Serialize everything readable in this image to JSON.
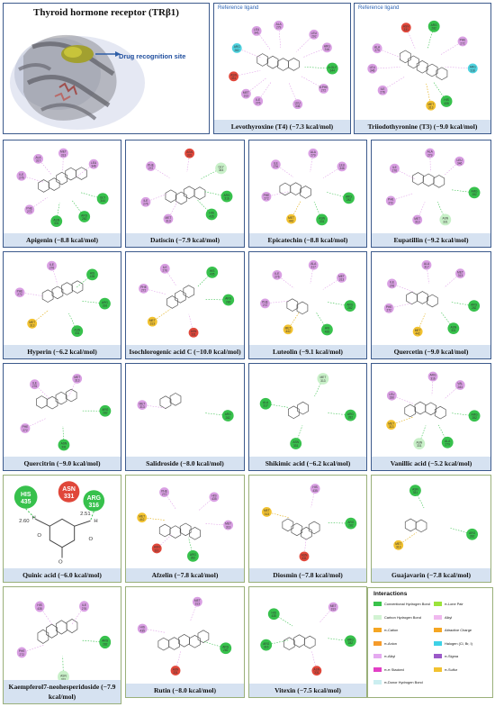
{
  "receptor_panel": {
    "title": "Thyroid hormone receptor (TRβ1)",
    "site_label": "Drug recognition site"
  },
  "reference_tag": "Reference ligand",
  "panels": [
    {
      "id": "levothyroxine",
      "name": "Levothyroxine (T4) (−7.3 kcal/mol)",
      "reference": true
    },
    {
      "id": "triiodothyronine",
      "name": "Triiodothyronine (T3) (−9.0 kcal/mol)",
      "reference": true
    },
    {
      "id": "apigenin",
      "name": "Apigenin (−8.8 kcal/mol)"
    },
    {
      "id": "datiscin",
      "name": "Datiscin (−7.9 kcal/mol)"
    },
    {
      "id": "epicatechin",
      "name": "Epicatechin (−8.8 kcal/mol)"
    },
    {
      "id": "eupatillin",
      "name": "Eupatillin (−9.2 kcal/mol)"
    },
    {
      "id": "hyperin",
      "name": "Hyperin (−6.2 kcal/mol)"
    },
    {
      "id": "isochlorogenic",
      "name": "Isochlorogenic acid C (−10.0 kcal/mol)"
    },
    {
      "id": "luteolin",
      "name": "Luteolin (−9.1 kcal/mol)"
    },
    {
      "id": "quercetin",
      "name": "Quercetin (−9.0 kcal/mol)"
    },
    {
      "id": "quercitrin",
      "name": "Quercitrin (−9.0 kcal/mol)"
    },
    {
      "id": "salidroside",
      "name": "Salidroside (−8.0 kcal/mol)"
    },
    {
      "id": "shikimic",
      "name": "Shikimic acid (−6.2 kcal/mol)"
    },
    {
      "id": "vanillic",
      "name": "Vanillic acid (−5.2 kcal/mol)"
    },
    {
      "id": "quinic",
      "name": "Quinic acid (−6.0 kcal/mol)"
    },
    {
      "id": "afzelin",
      "name": "Afzelin (−7.8 kcal/mol)"
    },
    {
      "id": "diosmin",
      "name": "Diosmin (−7.8 kcal/mol)"
    },
    {
      "id": "guajavarin",
      "name": "Guajavarin (−7.8 kcal/mol)"
    },
    {
      "id": "kaempferol",
      "name": "Kaempferol7-neohesperidoside (−7.9 kcal/mol)"
    },
    {
      "id": "rutin",
      "name": "Rutin (−8.0 kcal/mol)"
    },
    {
      "id": "vitexin",
      "name": "Vitexin (−7.5 kcal/mol)"
    }
  ],
  "residues": {
    "levothyroxine": [
      {
        "t": "A:GLY\n344",
        "c": "#37c14c"
      },
      {
        "t": "B:PHE\n272",
        "c": "#d99fe3"
      },
      {
        "t": "LEU\n346",
        "c": "#d99fe3"
      },
      {
        "t": "ILE\n276",
        "c": "#d99fe3"
      },
      {
        "t": "MET\n313",
        "c": "#d99fe3"
      },
      {
        "t": "ASN\n331",
        "c": "#e0473a"
      },
      {
        "t": "ARG\n282",
        "c": "#4fd3e0"
      },
      {
        "t": "LEU\n341",
        "c": "#d99fe3"
      },
      {
        "t": "ALA\n279",
        "c": "#d99fe3"
      },
      {
        "t": "LEU\n292",
        "c": "#d99fe3"
      },
      {
        "t": "ARG\n316",
        "c": "#d99fe3"
      }
    ],
    "triiodothyronine": [
      {
        "t": "ARG\n316",
        "c": "#4fd3e0"
      },
      {
        "t": "HIS\n435",
        "c": "#37c14c"
      },
      {
        "t": "MET\n313",
        "c": "#f2c230"
      },
      {
        "t": "ILE\n276",
        "c": "#d99fe3"
      },
      {
        "t": "LEU\n346",
        "c": "#d99fe3"
      },
      {
        "t": "ALA\n279",
        "c": "#d99fe3"
      },
      {
        "t": "ASN\n331",
        "c": "#e0473a"
      },
      {
        "t": "ARG\n282",
        "c": "#37c14c"
      },
      {
        "t": "PHE\n272",
        "c": "#d99fe3"
      }
    ],
    "apigenin": [
      {
        "t": "GLY\n344",
        "c": "#37c14c"
      },
      {
        "t": "ARG\n282",
        "c": "#37c14c"
      },
      {
        "t": "ASN\n331",
        "c": "#37c14c"
      },
      {
        "t": "PHE\n272",
        "c": "#d99fe3"
      },
      {
        "t": "ILE\n276",
        "c": "#d99fe3"
      },
      {
        "t": "ALA\n317",
        "c": "#d99fe3"
      },
      {
        "t": "MET\n313",
        "c": "#d99fe3"
      },
      {
        "t": "LEU\n346",
        "c": "#d99fe3"
      }
    ],
    "datiscin": [
      {
        "t": "ARG\n316",
        "c": "#37c14c"
      },
      {
        "t": "HIS\n435",
        "c": "#37c14c"
      },
      {
        "t": "MET\n313",
        "c": "#d99fe3"
      },
      {
        "t": "ILE\n276",
        "c": "#d99fe3"
      },
      {
        "t": "PHE\n272",
        "c": "#d99fe3"
      },
      {
        "t": "ASN\n331",
        "c": "#e0473a"
      },
      {
        "t": "GLY\n344",
        "c": "#c8f0c8"
      }
    ],
    "epicatechin": [
      {
        "t": "ARG\n282",
        "c": "#37c14c"
      },
      {
        "t": "ASN\n331",
        "c": "#37c14c"
      },
      {
        "t": "MET\n442",
        "c": "#f2c230"
      },
      {
        "t": "PHE\n272",
        "c": "#d99fe3"
      },
      {
        "t": "ILE\n276",
        "c": "#d99fe3"
      },
      {
        "t": "ALA\n279",
        "c": "#d99fe3"
      },
      {
        "t": "LEU\n346",
        "c": "#d99fe3"
      }
    ],
    "eupatillin": [
      {
        "t": "ARG\n282",
        "c": "#37c14c"
      },
      {
        "t": "ASN\n331",
        "c": "#c8f0c8"
      },
      {
        "t": "MET\n313",
        "c": "#d99fe3"
      },
      {
        "t": "PHE\n272",
        "c": "#d99fe3"
      },
      {
        "t": "ILE\n276",
        "c": "#d99fe3"
      },
      {
        "t": "ALA\n279",
        "c": "#d99fe3"
      },
      {
        "t": "LEU\n346",
        "c": "#d99fe3"
      }
    ],
    "hyperin": [
      {
        "t": "ARG\n316",
        "c": "#37c14c"
      },
      {
        "t": "ASN\n331",
        "c": "#37c14c"
      },
      {
        "t": "MET\n313",
        "c": "#f2c230"
      },
      {
        "t": "PHE\n272",
        "c": "#d99fe3"
      },
      {
        "t": "ILE\n276",
        "c": "#d99fe3"
      },
      {
        "t": "HIS\n435",
        "c": "#37c14c"
      }
    ],
    "isochlorogenic": [
      {
        "t": "ARG\n282",
        "c": "#37c14c"
      },
      {
        "t": "ASN\n331",
        "c": "#e0473a"
      },
      {
        "t": "MET\n313",
        "c": "#f2c230"
      },
      {
        "t": "PHE\n272",
        "c": "#d99fe3"
      },
      {
        "t": "ILE\n276",
        "c": "#d99fe3"
      },
      {
        "t": "HIS\n435",
        "c": "#37c14c"
      }
    ],
    "luteolin": [
      {
        "t": "ARG\n282",
        "c": "#37c14c"
      },
      {
        "t": "HIS\n435",
        "c": "#37c14c"
      },
      {
        "t": "MET\n442",
        "c": "#f2c230"
      },
      {
        "t": "PHE\n272",
        "c": "#d99fe3"
      },
      {
        "t": "ILE\n276",
        "c": "#d99fe3"
      },
      {
        "t": "ALA\n317",
        "c": "#d99fe3"
      },
      {
        "t": "MET\n313",
        "c": "#d99fe3"
      }
    ],
    "quercetin": [
      {
        "t": "ARG\n282",
        "c": "#37c14c"
      },
      {
        "t": "ASN\n331",
        "c": "#37c14c"
      },
      {
        "t": "MET\n442",
        "c": "#f2c230"
      },
      {
        "t": "PHE\n272",
        "c": "#d99fe3"
      },
      {
        "t": "ILE\n276",
        "c": "#d99fe3"
      },
      {
        "t": "ALA\n317",
        "c": "#d99fe3"
      },
      {
        "t": "MET\n313",
        "c": "#d99fe3"
      }
    ],
    "quercitrin": [
      {
        "t": "ARG\n282",
        "c": "#37c14c"
      },
      {
        "t": "ASN\n331",
        "c": "#37c14c"
      },
      {
        "t": "PHE\n272",
        "c": "#d99fe3"
      },
      {
        "t": "ILE\n276",
        "c": "#d99fe3"
      },
      {
        "t": "MET\n313",
        "c": "#d99fe3"
      }
    ],
    "salidroside": [
      {
        "t": "ARG\n282",
        "c": "#37c14c"
      },
      {
        "t": "MET\n313",
        "c": "#d99fe3"
      }
    ],
    "shikimic": [
      {
        "t": "ARG\n282",
        "c": "#37c14c"
      },
      {
        "t": "ASN\n331",
        "c": "#37c14c"
      },
      {
        "t": "ALA\n317",
        "c": "#37c14c"
      },
      {
        "t": "MET\n313",
        "c": "#c8f0c8"
      }
    ],
    "vanillic": [
      {
        "t": "ARG\n282",
        "c": "#37c14c"
      },
      {
        "t": "ALA\n279",
        "c": "#37c14c"
      },
      {
        "t": "ASN\n331",
        "c": "#c8f0c8"
      },
      {
        "t": "MET\n313",
        "c": "#f2c230"
      },
      {
        "t": "LEU\n330",
        "c": "#d99fe3"
      },
      {
        "t": "ARG\n316",
        "c": "#d99fe3"
      },
      {
        "t": "VAL\n283",
        "c": "#d99fe3"
      }
    ],
    "quinic": [
      {
        "t": "HIS\n435",
        "c": "#37c14c"
      },
      {
        "t": "ASN\n331",
        "c": "#e0473a"
      },
      {
        "t": "ARG\n316",
        "c": "#37c14c"
      }
    ],
    "afzelin": [
      {
        "t": "MET\n313",
        "c": "#d99fe3"
      },
      {
        "t": "ARG\n282",
        "c": "#37c14c"
      },
      {
        "t": "ASN\n331",
        "c": "#e0473a"
      },
      {
        "t": "MET\n442",
        "c": "#f2c230"
      },
      {
        "t": "PHE\n272",
        "c": "#d99fe3"
      },
      {
        "t": "HIS\n435",
        "c": "#d99fe3"
      }
    ],
    "diosmin": [
      {
        "t": "ARG\n282",
        "c": "#37c14c"
      },
      {
        "t": "ASN\n331",
        "c": "#e0473a"
      },
      {
        "t": "MET\n313",
        "c": "#f2c230"
      },
      {
        "t": "HIS\n435",
        "c": "#d99fe3"
      }
    ],
    "guajavarin": [
      {
        "t": "ARG\n282",
        "c": "#37c14c"
      },
      {
        "t": "MET\n313",
        "c": "#f2c230"
      },
      {
        "t": "ASN\n331",
        "c": "#37c14c"
      }
    ],
    "kaempferol": [
      {
        "t": "ARG\n282",
        "c": "#37c14c"
      },
      {
        "t": "ASN\n331",
        "c": "#c8f0c8"
      },
      {
        "t": "PHE\n272",
        "c": "#d99fe3"
      },
      {
        "t": "HIS\n435",
        "c": "#d99fe3"
      },
      {
        "t": "ILE\n276",
        "c": "#d99fe3"
      }
    ],
    "rutin": [
      {
        "t": "ARG\n282",
        "c": "#37c14c"
      },
      {
        "t": "ASN\n331",
        "c": "#e0473a"
      },
      {
        "t": "HIS\n435",
        "c": "#d99fe3"
      },
      {
        "t": "MET\n313",
        "c": "#d99fe3"
      }
    ],
    "vitexin": [
      {
        "t": "ARG\n282",
        "c": "#37c14c"
      },
      {
        "t": "ASN\n331",
        "c": "#e0473a"
      },
      {
        "t": "ARG\n316",
        "c": "#37c14c"
      },
      {
        "t": "HIS\n435",
        "c": "#37c14c"
      },
      {
        "t": "MET\n313",
        "c": "#d99fe3"
      }
    ]
  },
  "quinic_detail": {
    "residues": [
      {
        "label": "HIS\n435",
        "color": "#37c14c"
      },
      {
        "label": "ASN\n331",
        "color": "#e0473a"
      },
      {
        "label": "ARG\n316",
        "color": "#37c14c"
      }
    ],
    "distances": [
      "2.60",
      "2.51"
    ],
    "atoms": [
      "H",
      "O",
      "H",
      "O",
      "O"
    ]
  },
  "legend": {
    "title": "Interactions",
    "items": [
      {
        "label": "Conventional Hydrogen Bond",
        "color": "#39c24a"
      },
      {
        "label": "π-Lone Pair",
        "color": "#9be33a"
      },
      {
        "label": "Carbon Hydrogen Bond",
        "color": "#d2f3d3"
      },
      {
        "label": "Alkyl",
        "color": "#f0b9ef"
      },
      {
        "label": "π-Cation",
        "color": "#f5a623"
      },
      {
        "label": "Attractive Charge",
        "color": "#f5a623"
      },
      {
        "label": "π-Anion",
        "color": "#f59b2b"
      },
      {
        "label": "Halogen (Cl, Br, I)",
        "color": "#3ed1e6"
      },
      {
        "label": "π-Alkyl",
        "color": "#e5aaf0"
      },
      {
        "label": "π-Sigma",
        "color": "#9b59c8"
      },
      {
        "label": "π-π Stacked",
        "color": "#e23fc6"
      },
      {
        "label": "π-Sulfur",
        "color": "#f2c230"
      },
      {
        "label": "π-Donor Hydrogen Bond",
        "color": "#cbeef0"
      }
    ]
  }
}
